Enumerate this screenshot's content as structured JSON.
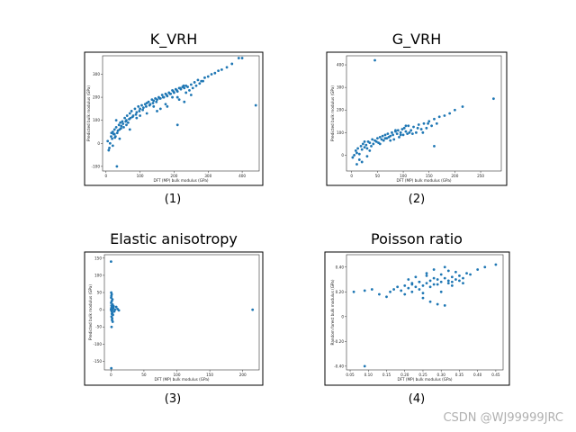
{
  "watermark": "CSDN @WJ99999JRC",
  "chart_data": [
    {
      "type": "scatter",
      "title": "K_VRH",
      "panel_label": "(1)",
      "xlabel": "DFT (MP) bulk modulus (GPa)",
      "ylabel": "Predicted bulk modulus (GPa)",
      "xlim": [
        -10,
        450
      ],
      "ylim": [
        -120,
        380
      ],
      "xticks": [
        0,
        100,
        200,
        300,
        400
      ],
      "yticks": [
        -100,
        0,
        100,
        200,
        300
      ],
      "color": "#1f77b4",
      "series": [
        {
          "name": "K_VRH",
          "x": [
            5,
            10,
            15,
            18,
            20,
            22,
            25,
            28,
            30,
            32,
            35,
            38,
            40,
            42,
            45,
            48,
            50,
            55,
            60,
            62,
            65,
            70,
            72,
            75,
            80,
            85,
            90,
            95,
            100,
            105,
            110,
            115,
            120,
            125,
            130,
            135,
            140,
            145,
            150,
            155,
            160,
            165,
            170,
            175,
            180,
            185,
            190,
            195,
            200,
            205,
            210,
            215,
            220,
            225,
            230,
            235,
            240,
            250,
            260,
            270,
            280,
            290,
            300,
            310,
            320,
            330,
            340,
            355,
            370,
            390,
            400,
            440,
            8,
            12,
            16,
            26,
            33,
            44,
            52,
            58,
            68,
            78,
            88,
            98,
            108,
            118,
            128,
            138,
            148,
            158,
            168,
            178,
            188,
            198,
            208,
            218,
            228,
            120,
            180,
            30,
            25,
            60,
            90,
            150,
            210,
            250,
            230,
            160,
            210,
            20,
            40,
            70,
            100,
            140,
            175,
            195,
            215,
            235,
            245,
            255,
            265,
            275,
            285
          ],
          "y": [
            10,
            -20,
            30,
            20,
            50,
            40,
            60,
            30,
            70,
            -100,
            55,
            80,
            60,
            90,
            75,
            95,
            85,
            110,
            100,
            120,
            90,
            130,
            110,
            140,
            120,
            150,
            135,
            160,
            150,
            165,
            155,
            170,
            175,
            180,
            170,
            190,
            185,
            195,
            190,
            200,
            195,
            210,
            200,
            215,
            205,
            220,
            215,
            230,
            220,
            235,
            225,
            240,
            235,
            245,
            240,
            250,
            245,
            255,
            265,
            275,
            270,
            285,
            290,
            300,
            305,
            315,
            320,
            330,
            345,
            370,
            370,
            165,
            -30,
            0,
            45,
            25,
            45,
            65,
            70,
            95,
            105,
            115,
            125,
            140,
            145,
            160,
            165,
            175,
            180,
            195,
            200,
            210,
            215,
            225,
            230,
            240,
            250,
            130,
            160,
            100,
            40,
            80,
            110,
            140,
            200,
            210,
            180,
            150,
            80,
            -10,
            20,
            60,
            120,
            160,
            170,
            200,
            190,
            220,
            230,
            240,
            250,
            260,
            270
          ]
        }
      ]
    },
    {
      "type": "scatter",
      "title": "G_VRH",
      "panel_label": "(2)",
      "xlabel": "DFT (MP) bulk modulus (GPa)",
      "ylabel": "Predicted bulk modulus (GPa)",
      "xlim": [
        -10,
        290
      ],
      "ylim": [
        -70,
        440
      ],
      "xticks": [
        0,
        50,
        100,
        150,
        200,
        250
      ],
      "yticks": [
        0,
        100,
        200,
        300,
        400
      ],
      "color": "#1f77b4",
      "series": [
        {
          "name": "G_VRH",
          "x": [
            2,
            5,
            8,
            10,
            12,
            15,
            18,
            20,
            22,
            25,
            28,
            30,
            32,
            35,
            38,
            40,
            42,
            45,
            48,
            50,
            52,
            55,
            58,
            60,
            62,
            65,
            68,
            70,
            72,
            75,
            78,
            80,
            82,
            85,
            88,
            90,
            92,
            95,
            98,
            100,
            102,
            105,
            108,
            110,
            115,
            120,
            125,
            130,
            135,
            140,
            145,
            150,
            155,
            160,
            165,
            170,
            180,
            190,
            200,
            215,
            275,
            45,
            15,
            25,
            35,
            55,
            65,
            75,
            85,
            95,
            105,
            112,
            118,
            128,
            138,
            148,
            160,
            10,
            20,
            30
          ],
          "y": [
            -10,
            0,
            20,
            10,
            30,
            -20,
            40,
            25,
            50,
            35,
            45,
            30,
            60,
            55,
            40,
            70,
            50,
            65,
            60,
            75,
            55,
            80,
            70,
            85,
            65,
            90,
            75,
            95,
            80,
            85,
            100,
            90,
            70,
            105,
            95,
            110,
            80,
            100,
            115,
            90,
            120,
            105,
            95,
            130,
            110,
            125,
            100,
            135,
            115,
            140,
            120,
            150,
            130,
            160,
            140,
            170,
            175,
            185,
            200,
            215,
            250,
            420,
            5,
            60,
            20,
            50,
            75,
            65,
            110,
            90,
            130,
            100,
            95,
            120,
            100,
            140,
            40,
            -40,
            -30,
            -5
          ]
        }
      ]
    },
    {
      "type": "scatter",
      "title": "Elastic anisotropy",
      "panel_label": "(3)",
      "xlabel": "DFT (MP) bulk modulus (GPa)",
      "ylabel": "Predicted bulk modulus (GPa)",
      "xlim": [
        -10,
        225
      ],
      "ylim": [
        -175,
        160
      ],
      "xticks": [
        0,
        50,
        100,
        150,
        200
      ],
      "yticks": [
        -150,
        -100,
        -50,
        0,
        50,
        100,
        150
      ],
      "color": "#1f77b4",
      "series": [
        {
          "name": "Elastic anisotropy",
          "x": [
            0,
            0.5,
            1,
            1.5,
            2,
            2.5,
            3,
            0.2,
            0.8,
            1.2,
            1.8,
            2.2,
            0.3,
            0.6,
            1.1,
            1.6,
            2.6,
            3.5,
            4,
            5,
            6,
            8,
            10,
            12,
            0.4,
            0.9,
            1.4,
            0.7,
            1.3,
            215,
            0.1,
            0.5,
            1,
            1.5,
            2
          ],
          "y": [
            0,
            5,
            -5,
            10,
            -10,
            15,
            -15,
            20,
            -20,
            25,
            -25,
            30,
            35,
            40,
            45,
            -30,
            -35,
            5,
            10,
            -5,
            0,
            8,
            2,
            -2,
            50,
            -50,
            0,
            12,
            -12,
            0,
            140,
            -170,
            3,
            -3,
            1
          ]
        }
      ]
    },
    {
      "type": "scatter",
      "title": "Poisson ratio",
      "panel_label": "(4)",
      "xlabel": "DFT (MP) bulk modulus (GPa)",
      "ylabel": "Random forest bulk modulus (GPa)",
      "xlim": [
        0.04,
        0.47
      ],
      "ylim": [
        -0.43,
        0.5
      ],
      "xticks": [
        0.05,
        0.1,
        0.15,
        0.2,
        0.25,
        0.3,
        0.35,
        0.4,
        0.45
      ],
      "yticks": [
        -0.4,
        -0.2,
        0.0,
        0.2,
        0.4
      ],
      "color": "#1f77b4",
      "series": [
        {
          "name": "Poisson ratio",
          "x": [
            0.06,
            0.09,
            0.11,
            0.13,
            0.15,
            0.16,
            0.17,
            0.18,
            0.19,
            0.2,
            0.21,
            0.22,
            0.23,
            0.24,
            0.25,
            0.26,
            0.27,
            0.28,
            0.29,
            0.3,
            0.31,
            0.32,
            0.33,
            0.34,
            0.35,
            0.36,
            0.37,
            0.38,
            0.4,
            0.42,
            0.45,
            0.09,
            0.2,
            0.21,
            0.22,
            0.23,
            0.24,
            0.25,
            0.26,
            0.27,
            0.28,
            0.29,
            0.3,
            0.31,
            0.32,
            0.33,
            0.34,
            0.35,
            0.25,
            0.27,
            0.29,
            0.31,
            0.26,
            0.28,
            0.3,
            0.32,
            0.24,
            0.22,
            0.33,
            0.36
          ],
          "y": [
            0.2,
            0.21,
            0.22,
            0.18,
            0.16,
            0.2,
            0.22,
            0.24,
            0.21,
            0.25,
            0.23,
            0.26,
            0.24,
            0.28,
            0.25,
            0.27,
            0.29,
            0.26,
            0.3,
            0.28,
            0.31,
            0.29,
            0.32,
            0.3,
            0.33,
            0.31,
            0.35,
            0.34,
            0.38,
            0.4,
            0.42,
            -0.4,
            0.18,
            0.3,
            0.2,
            0.32,
            0.22,
            0.19,
            0.35,
            0.24,
            0.38,
            0.26,
            0.2,
            0.4,
            0.27,
            0.25,
            0.36,
            0.29,
            0.15,
            0.12,
            0.1,
            0.09,
            0.33,
            0.31,
            0.34,
            0.37,
            0.28,
            0.27,
            0.28,
            0.27
          ]
        }
      ]
    }
  ]
}
